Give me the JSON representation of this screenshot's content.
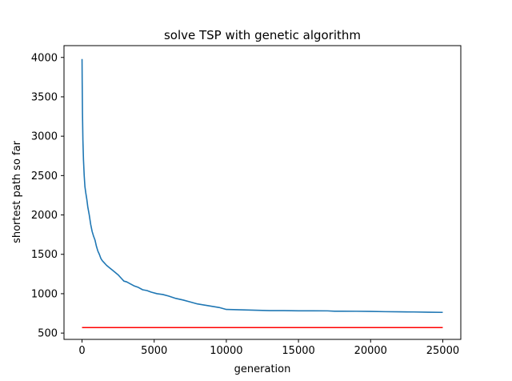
{
  "chart_data": {
    "type": "line",
    "title": "solve TSP with genetic algorithm",
    "xlabel": "generation",
    "ylabel": "shortest path so far",
    "xlim": [
      -1250,
      26250
    ],
    "ylim": [
      420,
      4150
    ],
    "grid": false,
    "xticks": [
      0,
      5000,
      10000,
      15000,
      20000,
      25000
    ],
    "xtick_labels": [
      "0",
      "5000",
      "10000",
      "15000",
      "20000",
      "25000"
    ],
    "yticks": [
      500,
      1000,
      1500,
      2000,
      2500,
      3000,
      3500,
      4000
    ],
    "ytick_labels": [
      "500",
      "1000",
      "1500",
      "2000",
      "2500",
      "3000",
      "3500",
      "4000"
    ],
    "series": [
      {
        "color": "#1f77b4",
        "x": [
          0,
          10,
          30,
          60,
          100,
          150,
          200,
          260,
          330,
          400,
          500,
          600,
          700,
          800,
          900,
          1000,
          1100,
          1200,
          1300,
          1400,
          1500,
          1700,
          1900,
          2100,
          2300,
          2500,
          2700,
          2900,
          3100,
          3300,
          3600,
          3900,
          4200,
          4500,
          4800,
          5200,
          5600,
          6000,
          6500,
          7000,
          7500,
          8000,
          8500,
          9000,
          9500,
          10000,
          11000,
          12000,
          13000,
          14000,
          15000,
          16000,
          17000,
          17500,
          18000,
          19000,
          20000,
          21000,
          22000,
          23000,
          24000,
          25000
        ],
        "y": [
          3980,
          3700,
          3300,
          2950,
          2700,
          2500,
          2360,
          2280,
          2200,
          2100,
          2000,
          1880,
          1790,
          1730,
          1680,
          1600,
          1540,
          1500,
          1450,
          1420,
          1400,
          1360,
          1330,
          1300,
          1270,
          1240,
          1200,
          1160,
          1150,
          1130,
          1100,
          1080,
          1050,
          1040,
          1020,
          1000,
          990,
          970,
          940,
          920,
          895,
          870,
          855,
          840,
          825,
          800,
          795,
          790,
          785,
          785,
          783,
          783,
          782,
          778,
          778,
          777,
          775,
          772,
          770,
          768,
          765,
          763
        ]
      },
      {
        "color": "#ff0000",
        "x": [
          0,
          25000
        ],
        "y": [
          570,
          570
        ]
      }
    ]
  }
}
